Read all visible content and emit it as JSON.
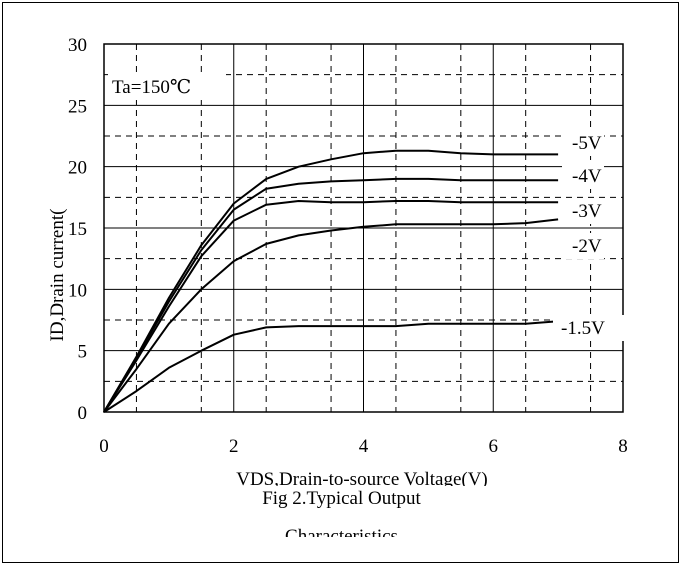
{
  "chart_data": {
    "type": "line",
    "xlabel": "VDS,Drain-to-source Voltage(V)",
    "ylabel": "ID,Drain current(",
    "annotation": "Ta=150℃",
    "caption_lines": [
      "Fig 2.Typical Output",
      "Characteristics"
    ],
    "xlim": [
      0,
      8
    ],
    "ylim": [
      0,
      30
    ],
    "x_ticks": [
      0,
      2,
      4,
      6,
      8
    ],
    "y_ticks": [
      0,
      5,
      10,
      15,
      20,
      25,
      30
    ],
    "grid": true,
    "series": [
      {
        "name": "-5V",
        "x": [
          0,
          0.5,
          1,
          1.5,
          2,
          2.5,
          3,
          3.5,
          4,
          4.5,
          5,
          5.5,
          6,
          6.5,
          7
        ],
        "y": [
          0,
          4.5,
          9.3,
          13.6,
          17.0,
          19.0,
          20.0,
          20.6,
          21.1,
          21.3,
          21.3,
          21.1,
          21.0,
          21.0,
          21.0
        ]
      },
      {
        "name": "-4V",
        "x": [
          0,
          0.5,
          1,
          1.5,
          2,
          2.5,
          3,
          3.5,
          4,
          4.5,
          5,
          5.5,
          6,
          6.5,
          7
        ],
        "y": [
          0,
          4.4,
          9.0,
          13.2,
          16.5,
          18.2,
          18.6,
          18.8,
          18.9,
          19.0,
          19.0,
          18.9,
          18.9,
          18.9,
          18.9
        ]
      },
      {
        "name": "-3V",
        "x": [
          0,
          0.5,
          1,
          1.5,
          2,
          2.5,
          3,
          3.5,
          4,
          4.5,
          5,
          5.5,
          6,
          6.5,
          7
        ],
        "y": [
          0,
          4.2,
          8.6,
          12.7,
          15.6,
          16.9,
          17.2,
          17.1,
          17.1,
          17.2,
          17.2,
          17.1,
          17.1,
          17.1,
          17.1
        ]
      },
      {
        "name": "-2V",
        "x": [
          0,
          0.5,
          1,
          1.5,
          2,
          2.5,
          3,
          3.5,
          4,
          4.5,
          5,
          5.5,
          6,
          6.5,
          7
        ],
        "y": [
          0,
          3.5,
          7.2,
          10.0,
          12.3,
          13.7,
          14.4,
          14.8,
          15.1,
          15.3,
          15.3,
          15.3,
          15.3,
          15.4,
          15.7
        ]
      },
      {
        "name": "-1.5V",
        "x": [
          0,
          0.5,
          1,
          1.5,
          2,
          2.5,
          3,
          3.5,
          4,
          4.5,
          5,
          5.5,
          6,
          6.5,
          7
        ],
        "y": [
          0,
          1.7,
          3.6,
          5.0,
          6.3,
          6.9,
          7.0,
          7.0,
          7.0,
          7.0,
          7.2,
          7.2,
          7.2,
          7.2,
          7.4
        ]
      }
    ]
  }
}
